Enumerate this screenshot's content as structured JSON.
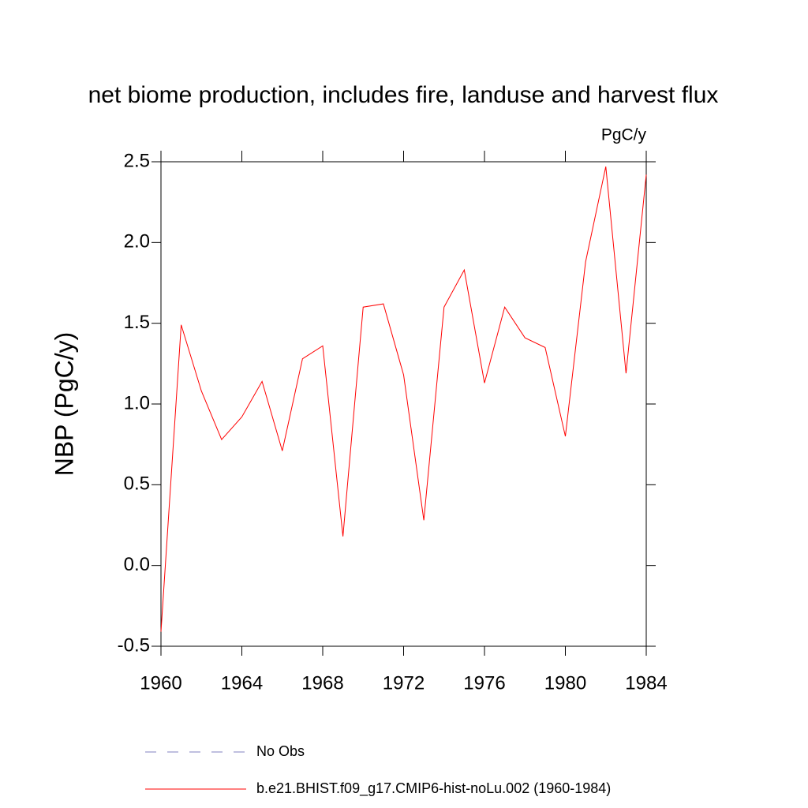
{
  "chart_data": {
    "type": "line",
    "title": "net biome production, includes fire, landuse and harvest flux",
    "units": "PgC/y",
    "y_label": "NBP  (PgC/y)",
    "x": [
      1960,
      1961,
      1962,
      1963,
      1964,
      1965,
      1966,
      1967,
      1968,
      1969,
      1970,
      1971,
      1972,
      1973,
      1974,
      1975,
      1976,
      1977,
      1978,
      1979,
      1980,
      1981,
      1982,
      1983,
      1984
    ],
    "series": [
      {
        "name": "No Obs",
        "color": "#8080c0",
        "dash": true,
        "values": [
          null,
          null,
          null,
          null,
          null,
          null,
          null,
          null,
          null,
          null,
          null,
          null,
          null,
          null,
          null,
          null,
          null,
          null,
          null,
          null,
          null,
          null,
          null,
          null,
          null
        ]
      },
      {
        "name": "b.e21.BHIST.f09_g17.CMIP6-hist-noLu.002 (1960-1984)",
        "color": "#ff0000",
        "dash": false,
        "values": [
          -0.41,
          1.49,
          1.08,
          0.78,
          0.92,
          1.14,
          0.71,
          1.28,
          1.36,
          0.18,
          1.6,
          1.62,
          1.18,
          0.28,
          1.6,
          1.83,
          1.13,
          1.6,
          1.41,
          1.35,
          0.8,
          1.88,
          2.47,
          1.19,
          2.42
        ]
      }
    ],
    "xlim": [
      1960,
      1984
    ],
    "xticks": [
      1960,
      1964,
      1968,
      1972,
      1976,
      1980,
      1984
    ],
    "ylim": [
      -0.5,
      2.5
    ],
    "yticks": [
      2.5,
      {
        "value": 2,
        "label": "2.0"
      },
      1.5,
      {
        "value": 1,
        "label": "1.0"
      },
      0.5,
      {
        "value": 0,
        "label": "0.0"
      },
      -0.5
    ],
    "grid": false
  }
}
